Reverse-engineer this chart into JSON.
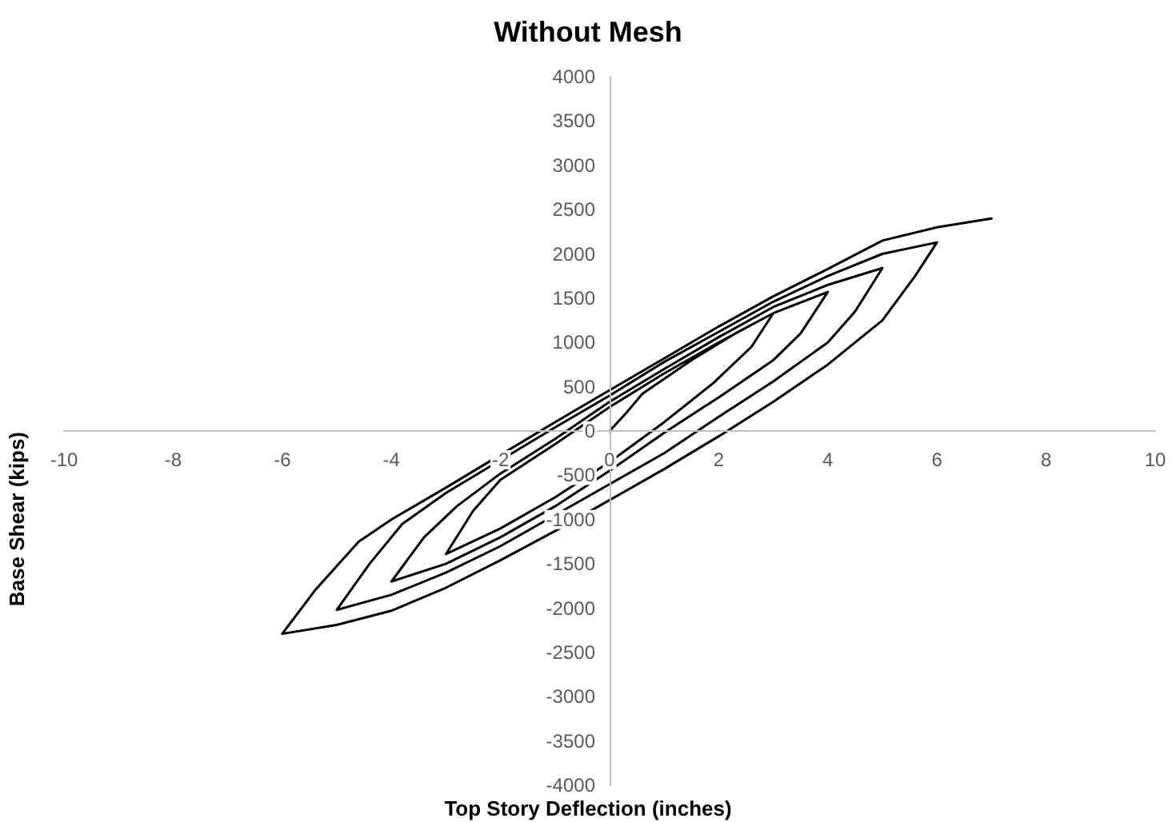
{
  "chart_data": {
    "type": "line",
    "title": "Without Mesh",
    "xlabel": "Top Story Deflection (inches)",
    "ylabel": "Base Shear (kips)",
    "x": [
      0,
      0.3,
      0.6,
      1.5,
      2.3,
      3,
      2.6,
      1.9,
      1,
      0,
      -1,
      -2,
      -3,
      -2.5,
      -2,
      -1,
      0,
      1,
      2,
      3,
      4,
      3.5,
      3,
      2,
      1,
      0,
      -1,
      -2,
      -3,
      -4,
      -3.4,
      -2.8,
      -2,
      -1,
      0,
      1,
      2,
      3,
      4,
      5,
      4.5,
      4,
      3,
      2,
      1,
      0,
      -2,
      -3,
      -4,
      -5,
      -4.4,
      -3.8,
      -3,
      -2,
      -1,
      0,
      1,
      2,
      3,
      4,
      5,
      6,
      5.6,
      5,
      4,
      3,
      2,
      1,
      0,
      -1,
      -2,
      -3,
      -4,
      -5,
      -6,
      -5.4,
      -4.6,
      -4,
      -3,
      -2,
      -1,
      0,
      1,
      2,
      3,
      4,
      5,
      6,
      7
    ],
    "values": [
      0,
      200,
      420,
      800,
      1100,
      1330,
      950,
      540,
      100,
      -350,
      -750,
      -1100,
      -1390,
      -900,
      -550,
      -150,
      270,
      650,
      1000,
      1330,
      1570,
      1100,
      800,
      380,
      -20,
      -450,
      -850,
      -1200,
      -1500,
      -1700,
      -1200,
      -850,
      -480,
      -90,
      330,
      700,
      1060,
      1400,
      1650,
      1840,
      1350,
      1000,
      560,
      160,
      -250,
      -600,
      -1300,
      -1600,
      -1850,
      -2020,
      -1500,
      -1050,
      -700,
      -330,
      40,
      400,
      780,
      1120,
      1460,
      1750,
      2000,
      2130,
      1750,
      1250,
      750,
      330,
      -60,
      -430,
      -780,
      -1130,
      -1460,
      -1770,
      -2030,
      -2190,
      -2290,
      -1800,
      -1250,
      -1000,
      -640,
      -270,
      100,
      460,
      820,
      1180,
      1520,
      1830,
      2150,
      2300,
      2400
    ],
    "color": "#000000",
    "marker": "none",
    "line_style": "solid",
    "grid": false,
    "xlim": [
      -10,
      10
    ],
    "xticks": [
      -10,
      -8,
      -6,
      -4,
      -2,
      0,
      2,
      4,
      6,
      8,
      10
    ],
    "ylim": [
      -4000,
      4000
    ],
    "yticks": [
      -4000,
      -3500,
      -3000,
      -2500,
      -2000,
      -1500,
      -1000,
      -500,
      0,
      500,
      1000,
      1500,
      2000,
      2500,
      3000,
      3500,
      4000
    ]
  }
}
